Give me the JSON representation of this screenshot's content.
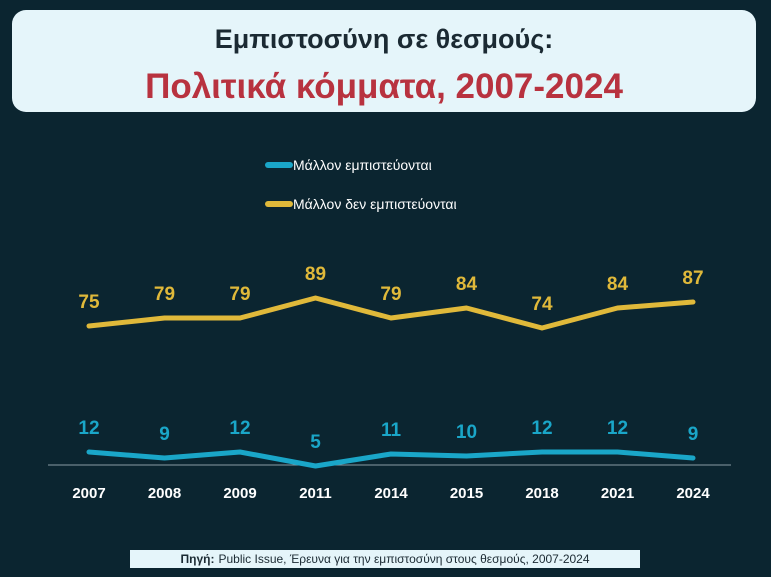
{
  "header": {
    "title_line1": "Εμπιστοσύνη σε θεσμούς:",
    "title_line2": "Πολιτικά κόμματα, 2007-2024"
  },
  "source": {
    "label": "Πηγή:",
    "text": "Public Issue, Έρευνα για την εμπιστοσύνη στους θεσμούς, 2007-2024"
  },
  "chart_data": {
    "type": "line",
    "categories": [
      "2007",
      "2008",
      "2009",
      "2011",
      "2014",
      "2015",
      "2018",
      "2021",
      "2024"
    ],
    "series": [
      {
        "name": "Μάλλον εμπιστεύονται",
        "color": "#1aa6c8",
        "values": [
          12,
          9,
          12,
          5,
          11,
          10,
          12,
          12,
          9
        ]
      },
      {
        "name": "Μάλλον δεν εμπιστεύονται",
        "color": "#e0b93a",
        "values": [
          75,
          79,
          79,
          89,
          79,
          84,
          74,
          84,
          87
        ]
      }
    ],
    "legend_position": "top-center",
    "grid": false,
    "data_labels": true
  }
}
